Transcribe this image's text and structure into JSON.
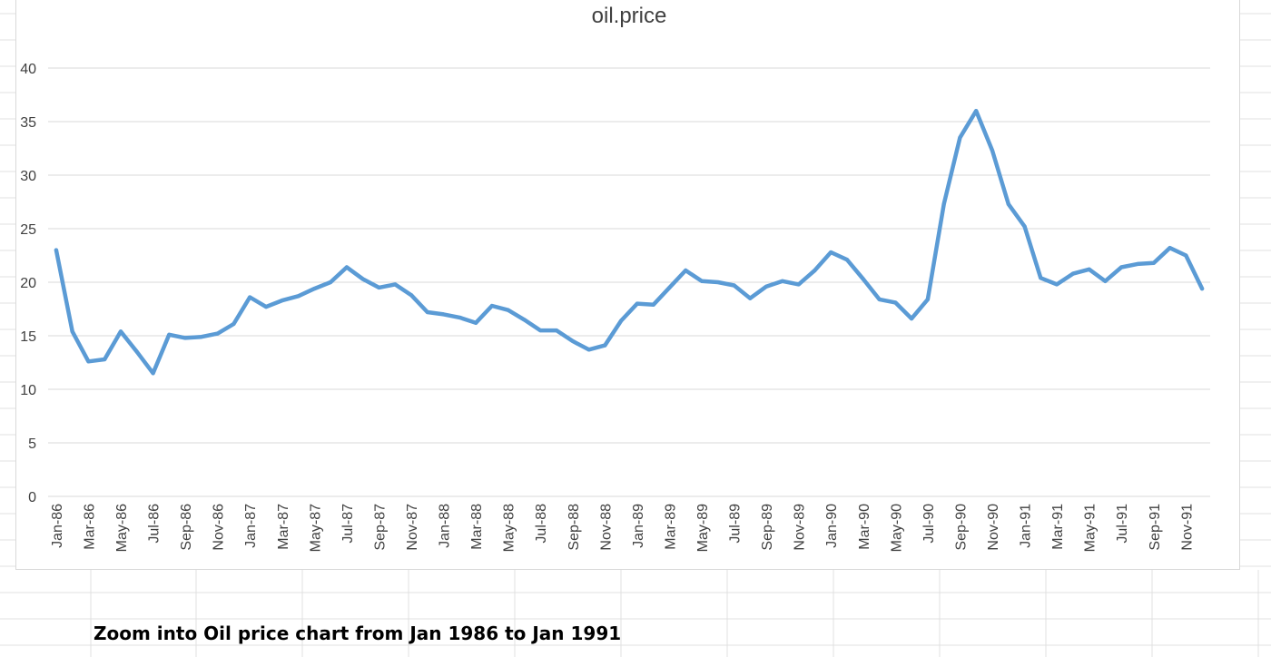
{
  "caption": "Zoom into Oil price chart from Jan 1986 to Jan 1991",
  "colors": {
    "line": "#5b9bd5",
    "grid": "#d9d9d9",
    "axis_text": "#404040",
    "cell_grid": "#e1e1e1"
  },
  "chart_data": {
    "type": "line",
    "title": "oil.price",
    "xlabel": "",
    "ylabel": "",
    "ylim": [
      0,
      40
    ],
    "yticks": [
      0,
      5,
      10,
      15,
      20,
      25,
      30,
      35,
      40
    ],
    "grid": true,
    "legend": "none",
    "x": [
      "Jan-86",
      "Feb-86",
      "Mar-86",
      "Apr-86",
      "May-86",
      "Jun-86",
      "Jul-86",
      "Aug-86",
      "Sep-86",
      "Oct-86",
      "Nov-86",
      "Dec-86",
      "Jan-87",
      "Feb-87",
      "Mar-87",
      "Apr-87",
      "May-87",
      "Jun-87",
      "Jul-87",
      "Aug-87",
      "Sep-87",
      "Oct-87",
      "Nov-87",
      "Dec-87",
      "Jan-88",
      "Feb-88",
      "Mar-88",
      "Apr-88",
      "May-88",
      "Jun-88",
      "Jul-88",
      "Aug-88",
      "Sep-88",
      "Oct-88",
      "Nov-88",
      "Dec-88",
      "Jan-89",
      "Feb-89",
      "Mar-89",
      "Apr-89",
      "May-89",
      "Jun-89",
      "Jul-89",
      "Aug-89",
      "Sep-89",
      "Oct-89",
      "Nov-89",
      "Dec-89",
      "Jan-90",
      "Feb-90",
      "Mar-90",
      "Apr-90",
      "May-90",
      "Jun-90",
      "Jul-90",
      "Aug-90",
      "Sep-90",
      "Oct-90",
      "Nov-90",
      "Dec-90",
      "Jan-91",
      "Feb-91",
      "Mar-91",
      "Apr-91",
      "May-91",
      "Jun-91",
      "Jul-91",
      "Aug-91",
      "Sep-91",
      "Oct-91",
      "Nov-91",
      "Dec-91"
    ],
    "xticks_shown": [
      "Jan-86",
      "Mar-86",
      "May-86",
      "Jul-86",
      "Sep-86",
      "Nov-86",
      "Jan-87",
      "Mar-87",
      "May-87",
      "Jul-87",
      "Sep-87",
      "Nov-87",
      "Jan-88",
      "Mar-88",
      "May-88",
      "Jul-88",
      "Sep-88",
      "Nov-88",
      "Jan-89",
      "Mar-89",
      "May-89",
      "Jul-89",
      "Sep-89",
      "Nov-89",
      "Jan-90",
      "Mar-90",
      "May-90",
      "Jul-90",
      "Sep-90",
      "Nov-90",
      "Jan-91",
      "Mar-91",
      "May-91",
      "Jul-91",
      "Sep-91",
      "Nov-91"
    ],
    "series": [
      {
        "values": [
          23.0,
          15.4,
          12.6,
          12.8,
          15.4,
          13.5,
          11.5,
          15.1,
          14.8,
          14.9,
          15.2,
          16.1,
          18.6,
          17.7,
          18.3,
          18.7,
          19.4,
          20.0,
          21.4,
          20.3,
          19.5,
          19.8,
          18.8,
          17.2,
          17.0,
          16.7,
          16.2,
          17.8,
          17.4,
          16.5,
          15.5,
          15.5,
          14.5,
          13.7,
          14.1,
          16.4,
          18.0,
          17.9,
          19.5,
          21.1,
          20.1,
          20.0,
          19.7,
          18.5,
          19.6,
          20.1,
          19.8,
          21.1,
          22.8,
          22.1,
          20.3,
          18.4,
          18.1,
          16.6,
          18.4,
          27.3,
          33.5,
          36.0,
          32.3,
          27.3,
          25.2,
          20.4,
          19.8,
          20.8,
          21.2,
          20.1,
          21.4,
          21.7,
          21.8,
          23.2,
          22.5,
          19.4
        ]
      }
    ]
  }
}
